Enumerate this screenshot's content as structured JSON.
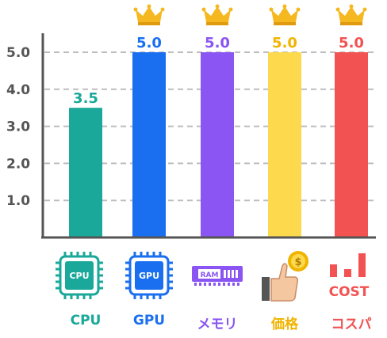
{
  "chart_data": {
    "type": "bar",
    "categories": [
      "CPU",
      "GPU",
      "メモリ",
      "価格",
      "コスパ"
    ],
    "values": [
      3.5,
      5.0,
      5.0,
      5.0,
      5.0
    ],
    "data_labels": [
      "3.5",
      "5.0",
      "5.0",
      "5.0",
      "5.0"
    ],
    "yticks": [
      "1.0",
      "2.0",
      "3.0",
      "4.0",
      "5.0"
    ],
    "ylim": [
      0,
      5.6
    ],
    "grid": true,
    "grid_style": "dashed",
    "colors": [
      "#1aa89a",
      "#1a6ff0",
      "#8a55f2",
      "#fcd94d",
      "#f25252"
    ],
    "label_colors": [
      "#1aa89a",
      "#1a6ff0",
      "#8a55f2",
      "#f0b400",
      "#f25252"
    ],
    "max_marker_icon": "crown-icon",
    "category_icons": [
      "cpu-chip-icon",
      "gpu-chip-icon",
      "ram-module-icon",
      "price-hand-coin-icon",
      "cost-chart-icon"
    ]
  },
  "icons": {
    "cpu_chip_text": "CPU",
    "gpu_chip_text": "GPU",
    "ram_text": "RAM",
    "coin_symbol": "$",
    "cost_text": "COST"
  }
}
